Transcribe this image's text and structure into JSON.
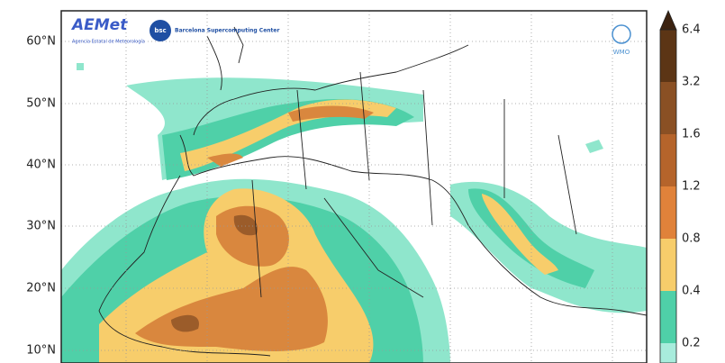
{
  "map": {
    "latitude_labels": [
      "60°N",
      "50°N",
      "40°N",
      "30°N",
      "20°N",
      "10°N"
    ],
    "colorbar_ticks": [
      6.4,
      3.2,
      1.6,
      1.2,
      0.8,
      0.4,
      0.2
    ],
    "logos": {
      "aemet": "AEMet",
      "aemet_subtitle": "Agencia Estatal de Meteorología",
      "bsc": "bsc",
      "bsc_name": "Barcelona Supercomputing Center",
      "wmo": "WMO"
    }
  }
}
